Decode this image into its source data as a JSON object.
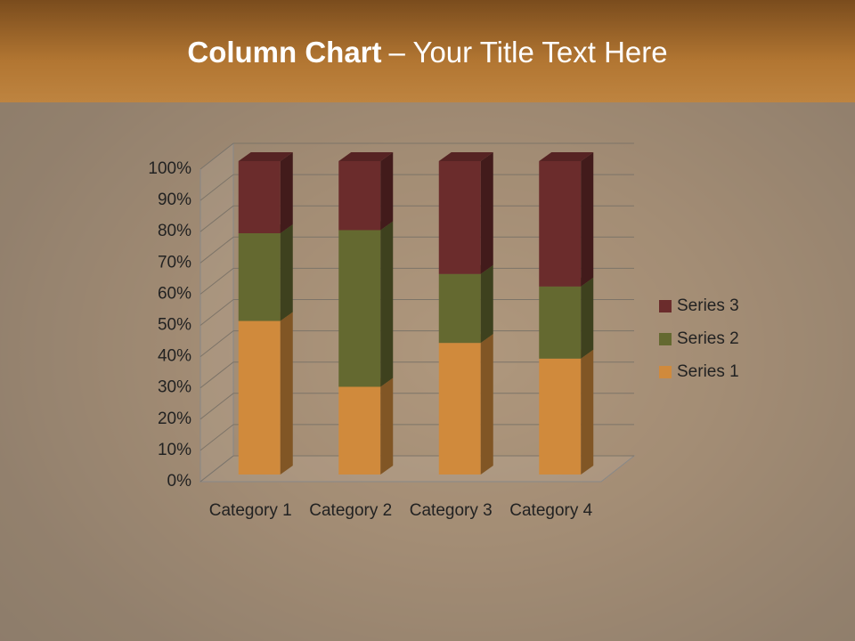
{
  "slide": {
    "title_bold": "Column Chart",
    "title_rest": "– Your Title Text Here"
  },
  "chart_data": {
    "type": "stacked_bar_3d",
    "categories": [
      "Category 1",
      "Category 2",
      "Category 3",
      "Category 4"
    ],
    "series": [
      {
        "name": "Series 1",
        "color": "#d08a3c",
        "values": [
          49,
          28,
          42,
          37
        ]
      },
      {
        "name": "Series 2",
        "color": "#646930",
        "values": [
          28,
          50,
          22,
          23
        ]
      },
      {
        "name": "Series 3",
        "color": "#6b2c2c",
        "values": [
          23,
          22,
          36,
          40
        ]
      }
    ],
    "ylim": [
      0,
      100
    ],
    "yticks": [
      {
        "value": 0,
        "label": "0%"
      },
      {
        "value": 10,
        "label": "10%"
      },
      {
        "value": 20,
        "label": "20%"
      },
      {
        "value": 30,
        "label": "30%"
      },
      {
        "value": 40,
        "label": "40%"
      },
      {
        "value": 50,
        "label": "50%"
      },
      {
        "value": 60,
        "label": "60%"
      },
      {
        "value": 70,
        "label": "70%"
      },
      {
        "value": 80,
        "label": "80%"
      },
      {
        "value": 90,
        "label": "90%"
      },
      {
        "value": 100,
        "label": "100%"
      }
    ],
    "grid": true,
    "legend": "right"
  }
}
